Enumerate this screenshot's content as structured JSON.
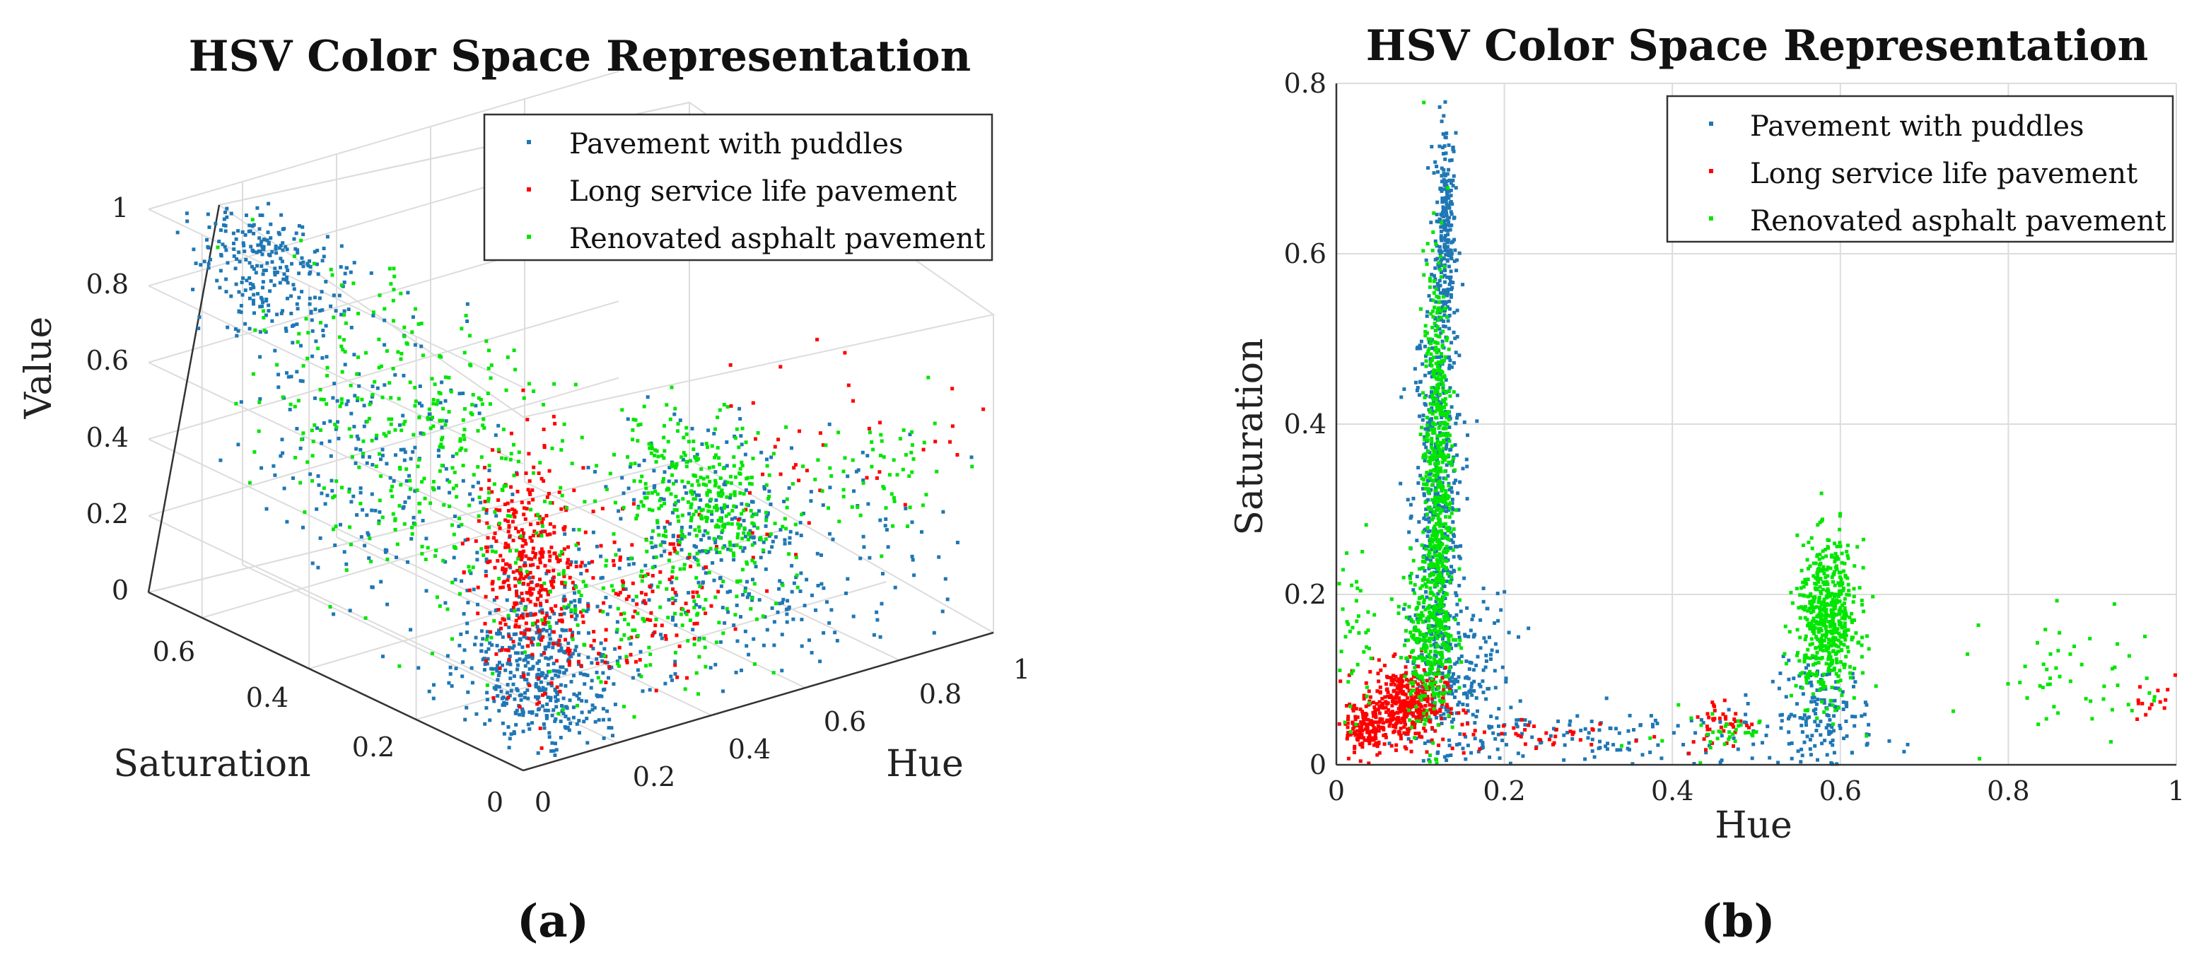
{
  "chart_data": [
    {
      "id": "a",
      "type": "scatter3d",
      "title": "HSV Color Space Representation",
      "xlabel": "Hue",
      "ylabel": "Saturation",
      "zlabel": "Value",
      "xlim": [
        0,
        1
      ],
      "ylim": [
        0,
        0.7
      ],
      "zlim": [
        0,
        1
      ],
      "xticks": [
        "0.2",
        "0.4",
        "0.6",
        "0.8",
        "1"
      ],
      "yticks": [
        "0",
        "0.2",
        "0.4",
        "0.6"
      ],
      "zticks": [
        "0",
        "0.2",
        "0.4",
        "0.6",
        "0.8",
        "1"
      ],
      "legend_position": "top-right",
      "caption": "(a)",
      "series": [
        {
          "name": "Pavement with puddles",
          "color": "#1f77b4",
          "clusters": [
            {
              "h": 0.08,
              "s": 0.55,
              "v": 0.92,
              "dh": 0.04,
              "ds": 0.06,
              "dv": 0.08,
              "n": 260
            },
            {
              "h": 0.1,
              "s": 0.35,
              "v": 0.55,
              "dh": 0.05,
              "ds": 0.12,
              "dv": 0.2,
              "n": 240
            },
            {
              "h": 0.12,
              "s": 0.08,
              "v": 0.15,
              "dh": 0.05,
              "ds": 0.06,
              "dv": 0.12,
              "n": 420
            },
            {
              "h": 0.45,
              "s": 0.05,
              "v": 0.25,
              "dh": 0.28,
              "ds": 0.04,
              "dv": 0.15,
              "n": 300
            },
            {
              "h": 0.58,
              "s": 0.15,
              "v": 0.35,
              "dh": 0.05,
              "ds": 0.08,
              "dv": 0.12,
              "n": 160
            }
          ]
        },
        {
          "name": "Long service life pavement",
          "color": "#ff0000",
          "clusters": [
            {
              "h": 0.08,
              "s": 0.06,
              "v": 0.45,
              "dh": 0.03,
              "ds": 0.04,
              "dv": 0.15,
              "n": 360
            },
            {
              "h": 0.25,
              "s": 0.04,
              "v": 0.3,
              "dh": 0.12,
              "ds": 0.03,
              "dv": 0.1,
              "n": 140
            },
            {
              "h": 0.75,
              "s": 0.05,
              "v": 0.55,
              "dh": 0.2,
              "ds": 0.04,
              "dv": 0.12,
              "n": 50
            }
          ]
        },
        {
          "name": "Renovated asphalt pavement",
          "color": "#00e600",
          "clusters": [
            {
              "h": 0.12,
              "s": 0.3,
              "v": 0.6,
              "dh": 0.04,
              "ds": 0.15,
              "dv": 0.2,
              "n": 380
            },
            {
              "h": 0.58,
              "s": 0.17,
              "v": 0.4,
              "dh": 0.04,
              "ds": 0.07,
              "dv": 0.1,
              "n": 320
            },
            {
              "h": 0.3,
              "s": 0.05,
              "v": 0.25,
              "dh": 0.15,
              "ds": 0.04,
              "dv": 0.1,
              "n": 140
            },
            {
              "h": 0.88,
              "s": 0.1,
              "v": 0.4,
              "dh": 0.08,
              "ds": 0.05,
              "dv": 0.08,
              "n": 60
            }
          ]
        }
      ]
    },
    {
      "id": "b",
      "type": "scatter",
      "title": "HSV Color Space Representation",
      "xlabel": "Hue",
      "ylabel": "Saturation",
      "xlim": [
        0,
        1
      ],
      "ylim": [
        0,
        0.8
      ],
      "xticks": [
        "0",
        "0.2",
        "0.4",
        "0.6",
        "0.8",
        "1"
      ],
      "yticks": [
        "0",
        "0.2",
        "0.4",
        "0.6",
        "0.8"
      ],
      "grid": true,
      "legend_position": "top-right",
      "caption": "(b)",
      "series": [
        {
          "name": "Pavement with puddles",
          "color": "#1f77b4",
          "clusters": [
            {
              "h": 0.13,
              "s": 0.62,
              "dh": 0.006,
              "ds": 0.07,
              "n": 260
            },
            {
              "h": 0.12,
              "s": 0.3,
              "dh": 0.015,
              "ds": 0.13,
              "n": 520
            },
            {
              "h": 0.15,
              "s": 0.1,
              "dh": 0.03,
              "ds": 0.05,
              "n": 200
            },
            {
              "h": 0.58,
              "s": 0.06,
              "dh": 0.03,
              "ds": 0.03,
              "n": 140
            },
            {
              "h": 0.35,
              "s": 0.03,
              "dh": 0.12,
              "ds": 0.02,
              "n": 120
            }
          ]
        },
        {
          "name": "Long service life pavement",
          "color": "#ff0000",
          "clusters": [
            {
              "h": 0.08,
              "s": 0.07,
              "dh": 0.025,
              "ds": 0.022,
              "n": 420
            },
            {
              "h": 0.035,
              "s": 0.04,
              "dh": 0.012,
              "ds": 0.015,
              "n": 110
            },
            {
              "h": 0.25,
              "s": 0.035,
              "dh": 0.06,
              "ds": 0.01,
              "n": 40
            },
            {
              "h": 0.46,
              "s": 0.05,
              "dh": 0.02,
              "ds": 0.015,
              "n": 40
            },
            {
              "h": 0.97,
              "s": 0.08,
              "dh": 0.012,
              "ds": 0.025,
              "n": 15
            }
          ]
        },
        {
          "name": "Renovated asphalt pavement",
          "color": "#00e600",
          "clusters": [
            {
              "h": 0.12,
              "s": 0.35,
              "dh": 0.008,
              "ds": 0.12,
              "n": 540
            },
            {
              "h": 0.11,
              "s": 0.15,
              "dh": 0.015,
              "ds": 0.05,
              "n": 280
            },
            {
              "h": 0.585,
              "s": 0.17,
              "dh": 0.018,
              "ds": 0.045,
              "n": 560
            },
            {
              "h": 0.02,
              "s": 0.14,
              "dh": 0.015,
              "ds": 0.06,
              "n": 45
            },
            {
              "h": 0.9,
              "s": 0.1,
              "dh": 0.06,
              "ds": 0.04,
              "n": 55
            },
            {
              "h": 0.45,
              "s": 0.04,
              "dh": 0.04,
              "ds": 0.015,
              "n": 35
            }
          ]
        }
      ]
    }
  ]
}
